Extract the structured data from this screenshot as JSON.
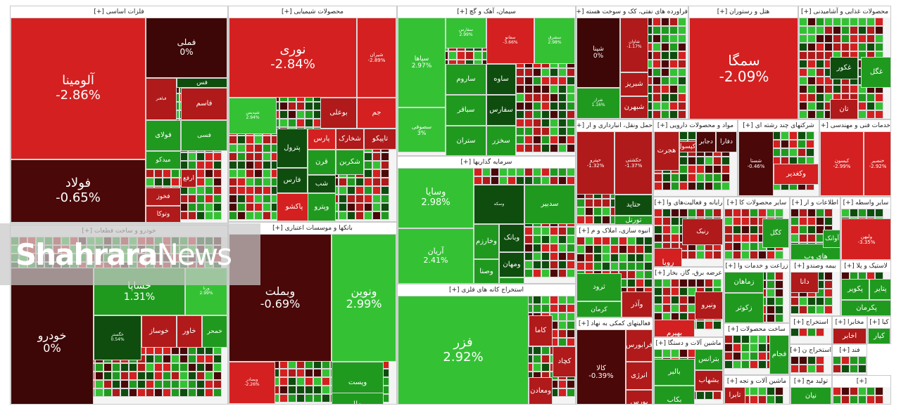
{
  "colors": {
    "dark_red": "#4a0808",
    "red": "#b01a1a",
    "bright_red": "#d42020",
    "dark_green": "#0e4d0e",
    "green": "#1f9a1f",
    "bright_green": "#34c234",
    "neutral": "#3d0707"
  },
  "logo": {
    "part1": "Shahrara",
    "part2": "News"
  },
  "chart_data": {
    "type": "heatmap",
    "title": "",
    "sectors": [
      {
        "id": "s1",
        "header": "فلزات اساسی [+]",
        "tiles": [
          {
            "name": "آلومینا",
            "change": "-2.86%",
            "level": -3
          },
          {
            "name": "فولاد",
            "change": "-0.65%",
            "level": -1
          },
          {
            "name": "فملی",
            "change": "0%",
            "level": 0
          },
          {
            "name": "فباهنر",
            "change": "",
            "level": -2
          },
          {
            "name": "فولای",
            "change": "",
            "level": 2
          },
          {
            "name": "فسی",
            "change": "",
            "level": 2
          },
          {
            "name": "فاسم",
            "change": "",
            "level": -2
          },
          {
            "name": "فس",
            "change": "",
            "level": 1
          },
          {
            "name": "میدکو",
            "change": "",
            "level": 2
          },
          {
            "name": "ارفع",
            "change": "",
            "level": -2
          },
          {
            "name": "فخوز",
            "change": "",
            "level": -2
          },
          {
            "name": "وتوکا",
            "change": "",
            "level": -2
          }
        ]
      },
      {
        "id": "s2",
        "header": "محصولات شیمیایی [+]",
        "tiles": [
          {
            "name": "نوری",
            "change": "-2.84%",
            "level": -3
          },
          {
            "name": "شیران",
            "change": "-2.89%",
            "level": -3
          },
          {
            "name": "شپدیس",
            "change": "2.94%",
            "level": 3
          },
          {
            "name": "بوعلی",
            "change": "",
            "level": -2
          },
          {
            "name": "جم",
            "change": "",
            "level": -3
          },
          {
            "name": "پترول",
            "change": "",
            "level": 1
          },
          {
            "name": "پارس",
            "change": "",
            "level": -3
          },
          {
            "name": "شخارک",
            "change": "",
            "level": -2
          },
          {
            "name": "تاپیکو",
            "change": "",
            "level": -2
          },
          {
            "name": "فارس",
            "change": "",
            "level": 1
          },
          {
            "name": "قرن",
            "change": "",
            "level": 2
          },
          {
            "name": "شکربن",
            "change": "",
            "level": 2
          },
          {
            "name": "شب",
            "change": "",
            "level": 1
          },
          {
            "name": "پاکشو",
            "change": "",
            "level": -3
          },
          {
            "name": "وپترو",
            "change": "",
            "level": 2
          }
        ]
      },
      {
        "id": "s3",
        "header": "سیمان، آهک و گچ [+]",
        "tiles": [
          {
            "name": "سپاها",
            "change": "2.97%",
            "level": 3
          },
          {
            "name": "سفارس",
            "change": "2.99%",
            "level": 3
          },
          {
            "name": "سفانو",
            "change": "-3.66%",
            "level": -3
          },
          {
            "name": "سشرق",
            "change": "2.98%",
            "level": 3
          },
          {
            "name": "ساروم",
            "change": "",
            "level": 2
          },
          {
            "name": "ساوه",
            "change": "",
            "level": 1
          },
          {
            "name": "سصوفی",
            "change": "3%",
            "level": 3
          },
          {
            "name": "سفارس",
            "change": "",
            "level": 1
          },
          {
            "name": "سباقر",
            "change": "",
            "level": 2
          },
          {
            "name": "ستران",
            "change": "",
            "level": 2
          },
          {
            "name": "سخزر",
            "change": "",
            "level": 2
          }
        ]
      },
      {
        "id": "s4",
        "header": "فراورده های نفتی، کک و سوخت هسته [+]",
        "tiles": [
          {
            "name": "شپنا",
            "change": "0%",
            "level": 0
          },
          {
            "name": "شبریز",
            "change": "",
            "level": -2
          },
          {
            "name": "شبهرن",
            "change": "",
            "level": -2
          },
          {
            "name": "شراز",
            "change": "1.16%",
            "level": 2
          },
          {
            "name": "شاوان",
            "change": "-1.17%",
            "level": -2
          }
        ]
      },
      {
        "id": "s5",
        "header": "هتل و رستوران [+]",
        "tiles": [
          {
            "name": "سمگا",
            "change": "-2.09%",
            "level": -3
          }
        ]
      },
      {
        "id": "s6",
        "header": "محصولات غذایی و آشامیدنی [+]",
        "tiles": [
          {
            "name": "غگل",
            "change": "",
            "level": 2
          },
          {
            "name": "غکور",
            "change": "",
            "level": 1
          },
          {
            "name": "تان",
            "change": "",
            "level": -2
          }
        ]
      },
      {
        "id": "s7",
        "header": "خودرو و ساخت قطعات [+]",
        "tiles": [
          {
            "name": "خساپا",
            "change": "1.31%",
            "level": 2
          },
          {
            "name": "خودرو",
            "change": "0%",
            "level": 0
          },
          {
            "name": "ورنا",
            "change": "2.99%",
            "level": 3
          },
          {
            "name": "خگستر",
            "change": "0.54%",
            "level": 1
          },
          {
            "name": "خوساز",
            "change": "",
            "level": -2
          },
          {
            "name": "خاور",
            "change": "",
            "level": -2
          },
          {
            "name": "خمحر",
            "change": "",
            "level": 2
          }
        ]
      },
      {
        "id": "s8",
        "header": "بانکها و موسسات اعتباری [+]",
        "tiles": [
          {
            "name": "وبملت",
            "change": "-0.69%",
            "level": -1
          },
          {
            "name": "ونوین",
            "change": "2.99%",
            "level": 3
          },
          {
            "name": "وبصادر",
            "change": "-2.26%",
            "level": -3
          },
          {
            "name": "وپست",
            "change": "",
            "level": 2
          },
          {
            "name": "وملل",
            "change": "",
            "level": 2
          }
        ]
      },
      {
        "id": "s9",
        "header": "سرمایه گذاریها [+]",
        "tiles": [
          {
            "name": "وسایا",
            "change": "2.98%",
            "level": 3
          },
          {
            "name": "آریان",
            "change": "2.41%",
            "level": 3
          },
          {
            "name": "وسکه",
            "change": "",
            "level": 1
          },
          {
            "name": "سدبیر",
            "change": "",
            "level": 2
          },
          {
            "name": "وخارزم",
            "change": "",
            "level": 2
          },
          {
            "name": "وبانک",
            "change": "",
            "level": 1
          },
          {
            "name": "ومهان",
            "change": "",
            "level": 1
          },
          {
            "name": "وصنا",
            "change": "",
            "level": 2
          },
          {
            "name": "وسپه",
            "change": "",
            "level": 2
          }
        ]
      },
      {
        "id": "s10",
        "header": "استخراج کانه های فلزی [+]",
        "tiles": [
          {
            "name": "فزر",
            "change": "2.92%",
            "level": 3
          },
          {
            "name": "کاما",
            "change": "",
            "level": -2
          },
          {
            "name": "کچاد",
            "change": "",
            "level": -2
          },
          {
            "name": "ومعادن",
            "change": "",
            "level": -2
          }
        ]
      },
      {
        "id": "s11",
        "header": "فعالیتهای کمکی به نهاد [+]",
        "tiles": [
          {
            "name": "کالا",
            "change": "-0.39%",
            "level": -1
          },
          {
            "name": "فرابورس",
            "change": "",
            "level": -2
          },
          {
            "name": "انرژی",
            "change": "",
            "level": -2
          },
          {
            "name": "بورس",
            "change": "",
            "level": -2
          }
        ]
      },
      {
        "id": "s12",
        "header": "حمل ونقل، انبارداری و ار [+]",
        "tiles": [
          {
            "name": "حپترو",
            "change": "-1.32%",
            "level": -2
          },
          {
            "name": "حکشتی",
            "change": "-1.37%",
            "level": -2
          },
          {
            "name": "حتاید",
            "change": "",
            "level": 1
          },
          {
            "name": "تورنل",
            "change": "",
            "level": 2
          }
        ]
      },
      {
        "id": "s13",
        "header": "انبوه سازی، املاک و م [+]",
        "tiles": [
          {
            "name": "ثرود",
            "change": "",
            "level": 2
          },
          {
            "name": "وآذر",
            "change": "",
            "level": -2
          },
          {
            "name": "کرمان",
            "change": "",
            "level": 2
          }
        ]
      },
      {
        "id": "s14",
        "header": "مواد و محصولات دارویی [+]",
        "tiles": [
          {
            "name": "هجرت",
            "change": "",
            "level": -2
          },
          {
            "name": "دجابر",
            "change": "",
            "level": -1
          },
          {
            "name": "دکپسول",
            "change": "",
            "level": -2
          },
          {
            "name": "دفارا",
            "change": "",
            "level": -1
          }
        ]
      },
      {
        "id": "s15",
        "header": "شرکتهای چند رشته ای [+]",
        "tiles": [
          {
            "name": "شستا",
            "change": "-0.46%",
            "level": -1
          },
          {
            "name": "وکغدیر",
            "change": "",
            "level": -3
          }
        ]
      },
      {
        "id": "s16",
        "header": "خدمات فنی و مهندسی [+]",
        "tiles": [
          {
            "name": "کیسون",
            "change": "-2.99%",
            "level": -3
          },
          {
            "name": "خنصیر",
            "change": "-2.92%",
            "level": -3
          }
        ]
      },
      {
        "id": "s17",
        "header": "رایانه و فعالیت‌های وا [+]",
        "tiles": [
          {
            "name": "رنیک",
            "change": "",
            "level": -2
          },
          {
            "name": "رویا",
            "change": "",
            "level": -3
          }
        ]
      },
      {
        "id": "s18",
        "header": "سایر محصولات کا [+]",
        "tiles": [
          {
            "name": "کگل",
            "change": "",
            "level": 2
          }
        ]
      },
      {
        "id": "s19",
        "header": "اطلاعات و ار [+]",
        "tiles": [
          {
            "name": "های وب",
            "change": "",
            "level": 2
          },
          {
            "name": "آوانک",
            "change": "",
            "level": 2
          }
        ]
      },
      {
        "id": "s20",
        "header": "سایر واسطه [+]",
        "tiles": [
          {
            "name": "ولبهن",
            "change": "-3.35%",
            "level": -3
          }
        ]
      },
      {
        "id": "s21",
        "header": "عرضه برق، گاز، بخار [+]",
        "tiles": [
          {
            "name": "ونیرو",
            "change": "",
            "level": -2
          },
          {
            "name": "بهپرم",
            "change": "",
            "level": -3
          }
        ]
      },
      {
        "id": "s22",
        "header": "زراعت و خدمات وا [+]",
        "tiles": [
          {
            "name": "زماهان",
            "change": "",
            "level": 2
          },
          {
            "name": "زکوثر",
            "change": "",
            "level": 2
          }
        ]
      },
      {
        "id": "s23",
        "header": "بیمه وصندو [+]",
        "tiles": [
          {
            "name": "دانا",
            "change": "",
            "level": -2
          }
        ]
      },
      {
        "id": "s24",
        "header": "لاستیک و پلا [+]",
        "tiles": [
          {
            "name": "پکویر",
            "change": "",
            "level": 2
          },
          {
            "name": "پتایر",
            "change": "",
            "level": 2
          },
          {
            "name": "پکرمان",
            "change": "",
            "level": 2
          }
        ]
      },
      {
        "id": "s25",
        "header": "ماشین آلات و دستگا [+]",
        "tiles": [
          {
            "name": "بترانس",
            "change": "",
            "level": 2
          },
          {
            "name": "بالبر",
            "change": "",
            "level": 2
          },
          {
            "name": "بشهاب",
            "change": "",
            "level": -2
          },
          {
            "name": "بکاب",
            "change": "",
            "level": 2
          }
        ]
      },
      {
        "id": "s26",
        "header": "ساخت محصولات [+]",
        "tiles": [
          {
            "name": "فجام",
            "change": "",
            "level": 2
          }
        ]
      },
      {
        "id": "s27",
        "header": "ماشین آلات و تجه [+]",
        "tiles": [
          {
            "name": "تابرا",
            "change": "",
            "level": -2
          }
        ]
      },
      {
        "id": "s28",
        "header": "استخراج [+]",
        "tiles": []
      },
      {
        "id": "s29",
        "header": "مخابرا [+]",
        "tiles": [
          {
            "name": "اخابر",
            "change": "",
            "level": -2
          }
        ]
      },
      {
        "id": "s30",
        "header": "استخراج ن [+]",
        "tiles": []
      },
      {
        "id": "s31",
        "header": "فند [+]",
        "tiles": []
      },
      {
        "id": "s32",
        "header": "تولید مح [+]",
        "tiles": [
          {
            "name": "نیان",
            "change": "",
            "level": 2
          }
        ]
      },
      {
        "id": "s33",
        "header": "کیا [+]",
        "tiles": [
          {
            "name": "کیار",
            "change": "",
            "level": 2
          }
        ]
      },
      {
        "id": "s34",
        "header": "[+]",
        "tiles": []
      }
    ]
  }
}
